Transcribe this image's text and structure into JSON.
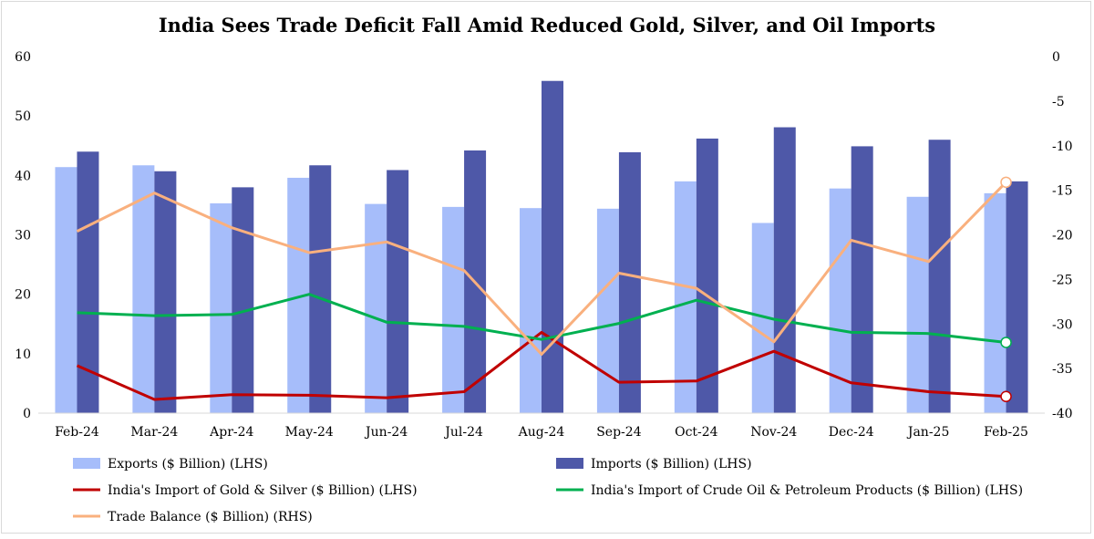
{
  "chart_data": {
    "type": "bar",
    "title": "India Sees Trade Deficit Fall Amid Reduced Gold, Silver, and Oil Imports",
    "categories": [
      "Feb-24",
      "Mar-24",
      "Apr-24",
      "May-24",
      "Jun-24",
      "Jul-24",
      "Aug-24",
      "Sep-24",
      "Oct-24",
      "Nov-24",
      "Dec-24",
      "Jan-25",
      "Feb-25"
    ],
    "y_left": {
      "min": 0,
      "max": 60,
      "ticks": [
        "0",
        "10",
        "20",
        "30",
        "40",
        "50",
        "60"
      ]
    },
    "y_right": {
      "min": -40,
      "max": 0,
      "ticks": [
        "0",
        "-5",
        "-10",
        "-15",
        "-20",
        "-25",
        "-30",
        "-35",
        "-40"
      ]
    },
    "grid": false,
    "legend_position": "bottom",
    "series": [
      {
        "name": "Exports ($ Billion) (LHS)",
        "type": "bar",
        "axis": "left",
        "color": "#a6bdfa",
        "values": [
          41.4,
          41.7,
          35.3,
          39.6,
          35.2,
          34.7,
          34.5,
          34.4,
          39.0,
          32.0,
          37.8,
          36.4,
          37.0
        ]
      },
      {
        "name": "Imports ($ Billion) (LHS)",
        "type": "bar",
        "axis": "left",
        "color": "#4e58a8",
        "values": [
          44.0,
          40.7,
          38.0,
          41.7,
          40.9,
          44.2,
          55.9,
          43.9,
          46.2,
          48.1,
          44.9,
          46.0,
          39.0
        ]
      },
      {
        "name": "India's Import of  Gold & Silver ($ Billion) (LHS)",
        "type": "line",
        "axis": "left",
        "color": "#c00000",
        "values": [
          8.0,
          2.3,
          3.1,
          3.0,
          2.6,
          3.6,
          13.6,
          5.2,
          5.4,
          10.4,
          5.1,
          3.6,
          2.8
        ]
      },
      {
        "name": "India's Import of Crude Oil & Petroleum Products ($ Billion) (LHS)",
        "type": "line",
        "axis": "left",
        "color": "#00b050",
        "values": [
          16.9,
          16.4,
          16.6,
          20.0,
          15.3,
          14.6,
          12.4,
          15.1,
          19.0,
          15.8,
          13.6,
          13.4,
          11.9
        ]
      },
      {
        "name": "Trade Balance ($ Billion)  (RHS)",
        "type": "line",
        "axis": "right",
        "color": "#f9b07e",
        "values": [
          -19.6,
          -15.3,
          -19.2,
          -22.0,
          -20.8,
          -24.0,
          -33.4,
          -24.3,
          -26.0,
          -32.0,
          -20.6,
          -23.0,
          -14.1
        ]
      }
    ]
  }
}
